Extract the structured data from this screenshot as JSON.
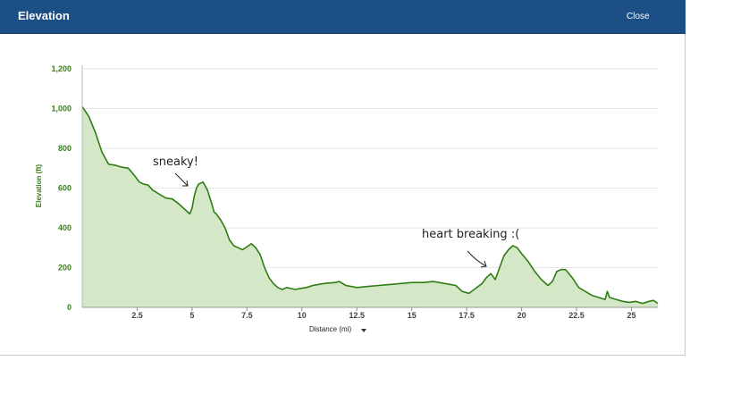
{
  "dialog": {
    "title": "Elevation",
    "close_label": "Close"
  },
  "chart_data": {
    "type": "area",
    "ylabel": "Elevation (ft)",
    "xlabel": "Distance (mi)",
    "xlim": [
      0,
      26.2
    ],
    "ylim": [
      0,
      1200
    ],
    "y_ticks": [
      0,
      200,
      400,
      600,
      800,
      1000,
      1200
    ],
    "y_tick_labels": [
      "0",
      "200",
      "400",
      "600",
      "800",
      "1,000",
      "1,200"
    ],
    "x_ticks": [
      2.5,
      5,
      7.5,
      10,
      12.5,
      15,
      17.5,
      20,
      22.5,
      25
    ],
    "x_tick_labels": [
      "2.5",
      "5",
      "7.5",
      "10",
      "12.5",
      "15",
      "17.5",
      "20",
      "22.5",
      "25"
    ],
    "grid": true,
    "colors": {
      "line": "#2e7d12",
      "fill": "#d4e8c8"
    },
    "series": [
      {
        "x": [
          0,
          0.3,
          0.6,
          0.9,
          1.2,
          1.5,
          1.8,
          2.1,
          2.4,
          2.6,
          2.8,
          3.0,
          3.2,
          3.5,
          3.8,
          4.1,
          4.4,
          4.7,
          4.9,
          5.0,
          5.1,
          5.2,
          5.3,
          5.5,
          5.7,
          5.9,
          6.0,
          6.1,
          6.3,
          6.5,
          6.7,
          6.9,
          7.1,
          7.3,
          7.5,
          7.7,
          7.9,
          8.1,
          8.3,
          8.5,
          8.7,
          8.9,
          9.1,
          9.3,
          9.5,
          9.7,
          9.9,
          10.2,
          10.5,
          11.0,
          11.5,
          11.7,
          12.0,
          12.5,
          13.0,
          13.5,
          14.0,
          14.5,
          15.0,
          15.5,
          16.0,
          16.5,
          17.0,
          17.3,
          17.6,
          17.9,
          18.2,
          18.4,
          18.6,
          18.8,
          19.0,
          19.2,
          19.4,
          19.6,
          19.8,
          20.0,
          20.3,
          20.6,
          20.9,
          21.2,
          21.4,
          21.6,
          21.8,
          22.0,
          22.3,
          22.6,
          22.9,
          23.2,
          23.5,
          23.8,
          23.9,
          24.0,
          24.3,
          24.6,
          24.9,
          25.2,
          25.5,
          25.8,
          26.0,
          26.2
        ],
        "y": [
          1010,
          960,
          880,
          780,
          720,
          715,
          705,
          700,
          660,
          630,
          620,
          615,
          590,
          570,
          550,
          545,
          520,
          490,
          470,
          500,
          560,
          600,
          620,
          630,
          590,
          520,
          480,
          470,
          440,
          400,
          340,
          310,
          300,
          290,
          305,
          320,
          300,
          265,
          200,
          150,
          120,
          100,
          90,
          100,
          95,
          90,
          95,
          100,
          110,
          120,
          125,
          130,
          110,
          100,
          105,
          110,
          115,
          120,
          125,
          125,
          130,
          120,
          110,
          80,
          70,
          95,
          120,
          150,
          170,
          140,
          200,
          260,
          290,
          310,
          300,
          270,
          230,
          180,
          140,
          110,
          130,
          180,
          190,
          190,
          150,
          100,
          80,
          60,
          50,
          40,
          80,
          50,
          40,
          30,
          25,
          30,
          20,
          30,
          35,
          20
        ]
      }
    ],
    "annotations": [
      {
        "text": "sneaky!",
        "x": 5.0,
        "y": 620
      },
      {
        "text": "heart breaking :(",
        "x": 18.6,
        "y": 170
      }
    ]
  }
}
